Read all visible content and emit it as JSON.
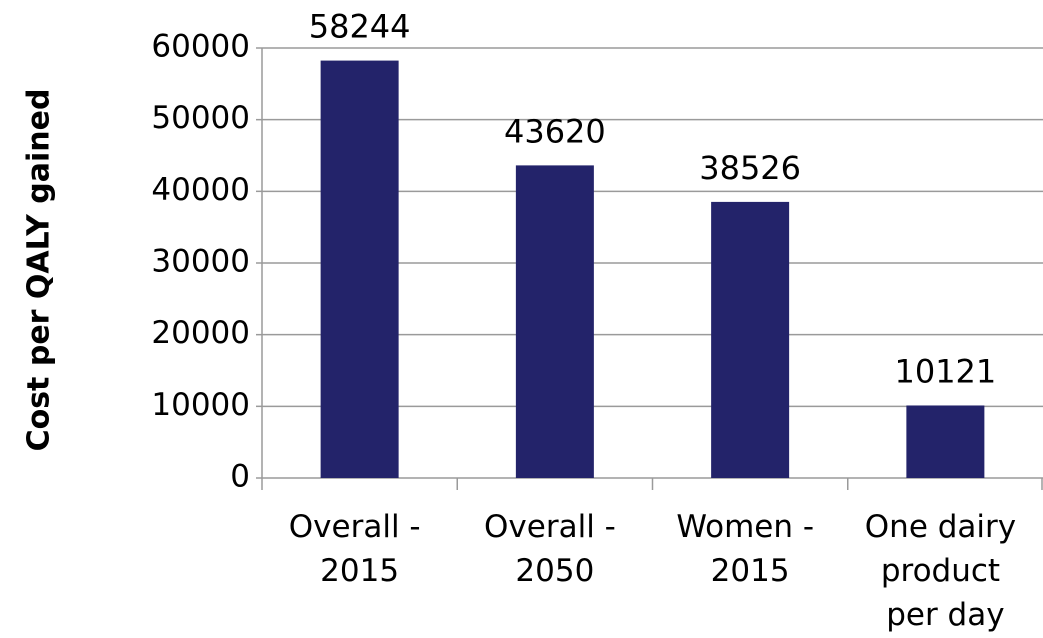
{
  "chart_data": {
    "type": "bar",
    "y_label": "Cost per QALY gained",
    "categories": [
      "Overall - 2015",
      "Overall - 2050",
      "Women - 2015",
      "One dairy product per day"
    ],
    "values": [
      58244,
      43620,
      38526,
      10121
    ],
    "color": "#23236a",
    "ylim": [
      0,
      60000
    ],
    "yticks": [
      0,
      10000,
      20000,
      30000,
      40000,
      50000,
      60000
    ],
    "grid": true
  }
}
